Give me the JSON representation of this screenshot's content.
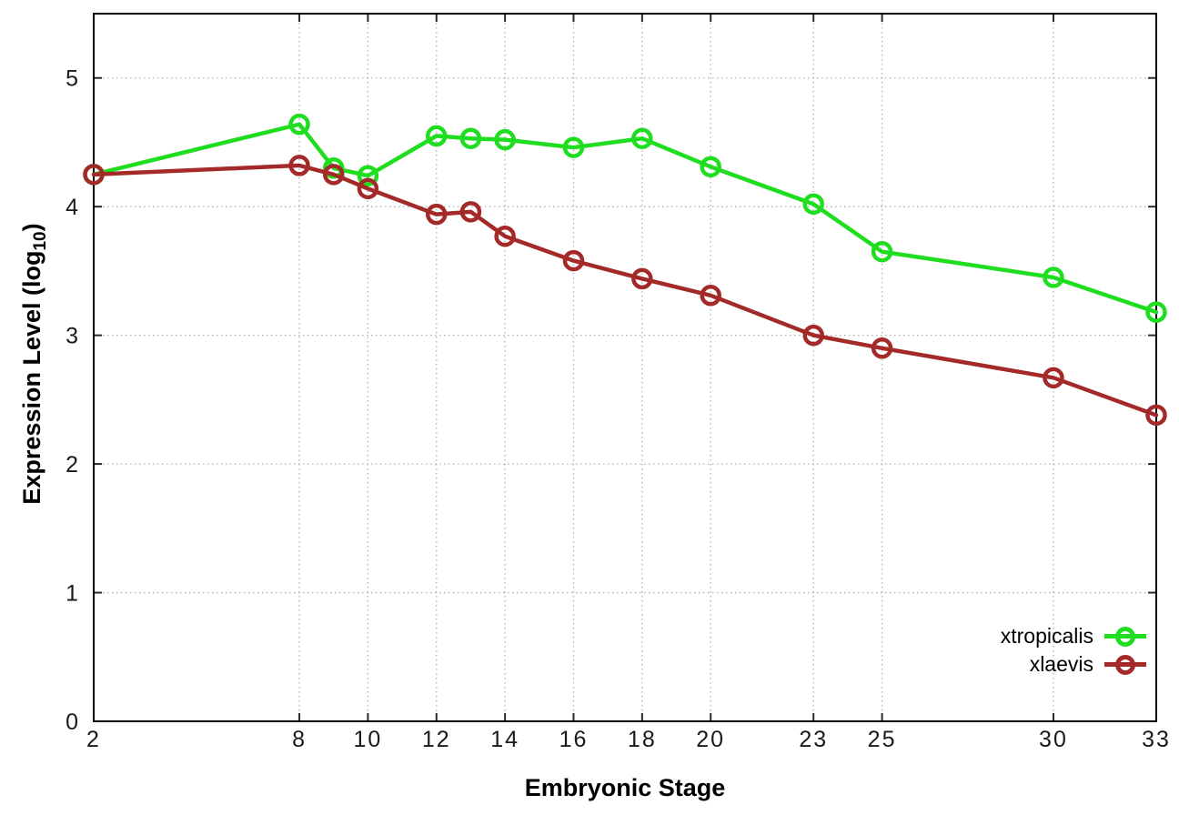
{
  "chart_data": {
    "type": "line",
    "title": "",
    "xlabel": "Embryonic Stage",
    "ylabel": "Expression Level (log10)",
    "ylabel_parts": {
      "main": "Expression Level (log",
      "sub": "10",
      "end": ")"
    },
    "x": [
      2,
      8,
      9,
      10,
      12,
      13,
      14,
      16,
      18,
      20,
      23,
      25,
      30,
      33
    ],
    "series": [
      {
        "name": "xtropicalis",
        "color": "#1fdd1f",
        "values": [
          4.25,
          4.64,
          4.3,
          4.24,
          4.55,
          4.53,
          4.52,
          4.46,
          4.53,
          4.31,
          4.02,
          3.65,
          3.45,
          3.18
        ]
      },
      {
        "name": "xlaevis",
        "color": "#a42a2a",
        "values": [
          4.25,
          4.32,
          4.25,
          4.14,
          3.94,
          3.96,
          3.77,
          3.58,
          3.44,
          3.31,
          3.0,
          2.9,
          2.67,
          2.38
        ]
      }
    ],
    "xtick_labels": [
      2,
      8,
      10,
      12,
      14,
      16,
      18,
      20,
      23,
      25,
      30,
      33
    ],
    "ytick_labels": [
      0,
      1,
      2,
      3,
      4,
      5
    ],
    "xlim": [
      2,
      33
    ],
    "ylim": [
      0,
      5.5
    ],
    "grid": true,
    "grid_color": "#b0b0b0",
    "axis_color": "#000000",
    "tick_label_color": "#1a1a1a",
    "legend_position": "bottom-right-inside",
    "marker": "open-circle"
  }
}
